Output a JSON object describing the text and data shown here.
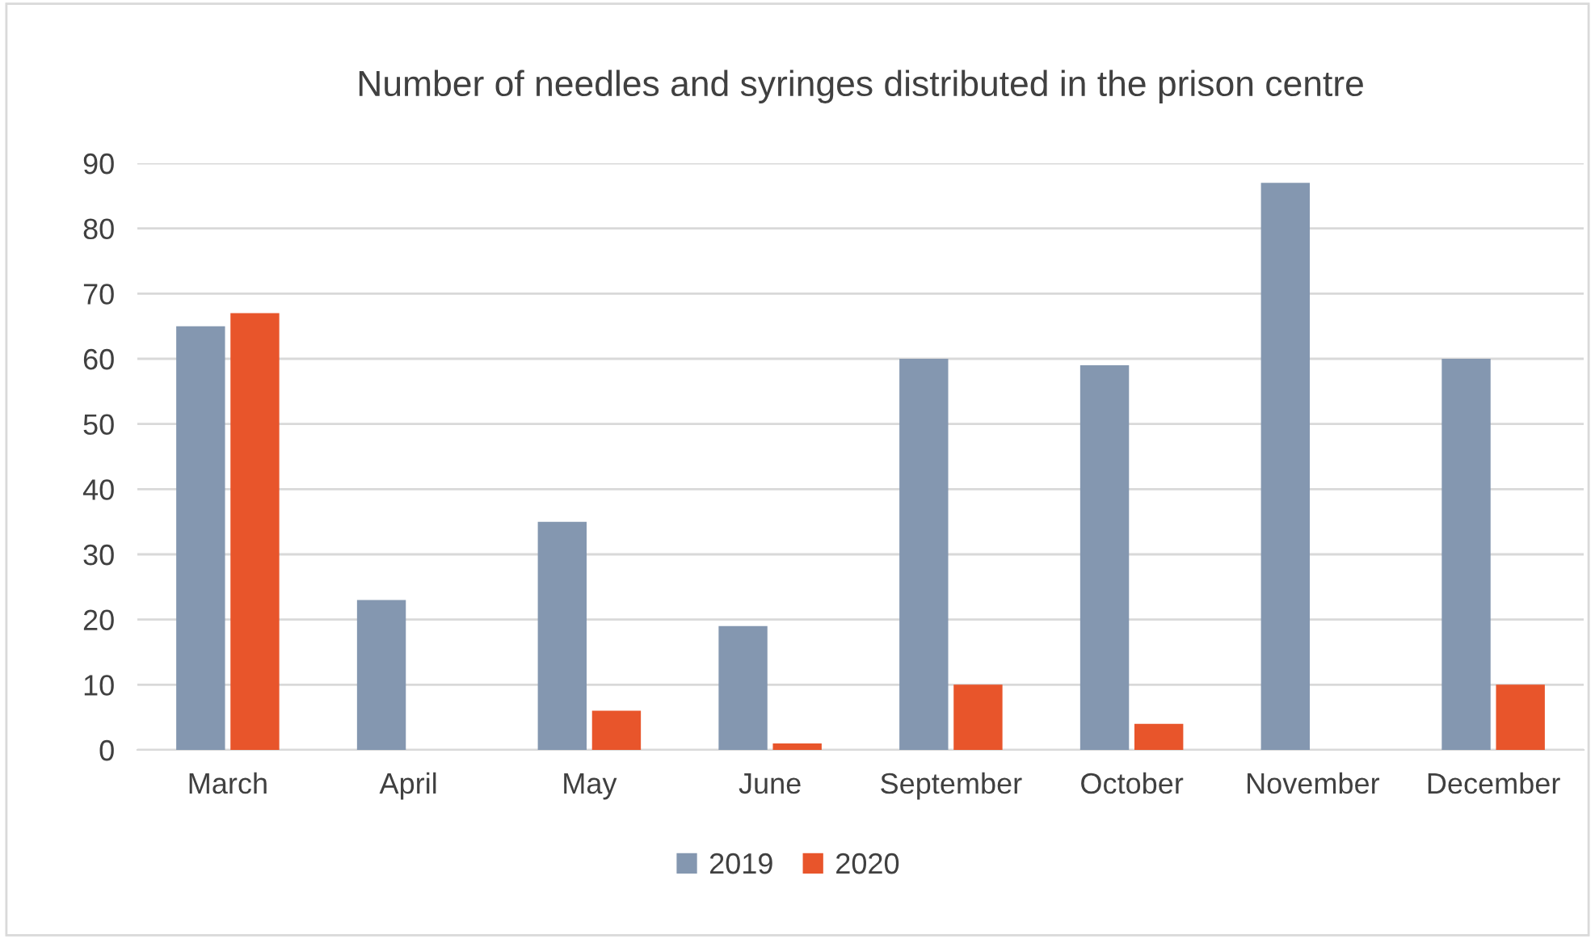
{
  "chart_data": {
    "type": "bar",
    "title": "Number of needles and syringes distributed in the prison centre",
    "categories": [
      "March",
      "April",
      "May",
      "June",
      "September",
      "October",
      "November",
      "December"
    ],
    "series": [
      {
        "name": "2019",
        "color": "#8497b0",
        "values": [
          65,
          23,
          35,
          19,
          60,
          59,
          87,
          60
        ]
      },
      {
        "name": "2020",
        "color": "#e8552b",
        "values": [
          67,
          0,
          6,
          1,
          10,
          4,
          0,
          10
        ]
      }
    ],
    "ylim": [
      0,
      90
    ],
    "yticks": [
      0,
      10,
      20,
      30,
      40,
      50,
      60,
      70,
      80,
      90
    ],
    "grid": "y",
    "legend": "bottom"
  }
}
